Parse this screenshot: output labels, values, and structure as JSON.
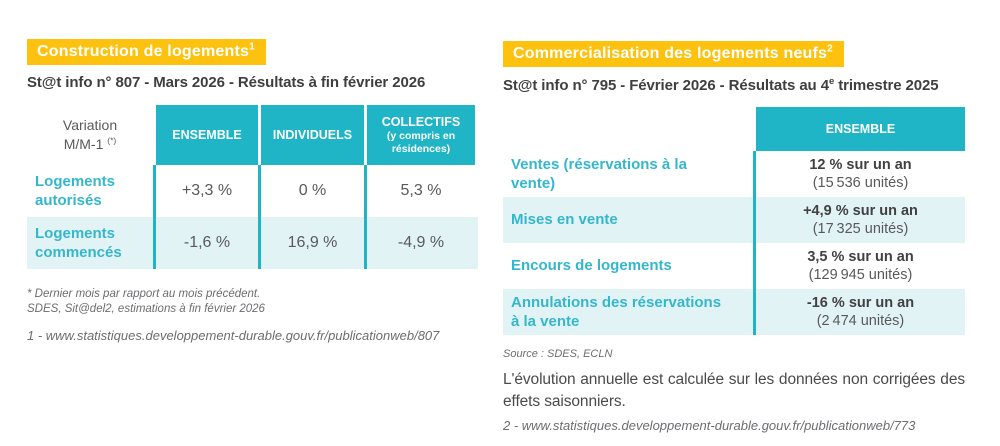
{
  "colors": {
    "accent_yellow": "#FDC20F",
    "accent_teal": "#1FB5C6",
    "row_alt_teal": "#E2F3F6",
    "label_teal": "#35B7CB",
    "text_dark": "#3F3E40",
    "value_gray": "#59595B",
    "note_gray": "#6C6D70"
  },
  "construction": {
    "title": "Construction de logements",
    "title_sup": "1",
    "subtitle": "St@t info n° 807 - Mars 2026 - Résultats à fin février 2026",
    "table": {
      "corner": {
        "line1": "Variation",
        "line2": "M/M-1",
        "sup": "(*)"
      },
      "columns": [
        {
          "label": "ENSEMBLE"
        },
        {
          "label": "INDIVIDUELS"
        },
        {
          "label": "COLLECTIFS",
          "sub": "(y compris en résidences)"
        }
      ],
      "rows": [
        {
          "label": "Logements autorisés",
          "values": [
            "+3,3 %",
            "0 %",
            "5,3 %"
          ]
        },
        {
          "label": "Logements commencés",
          "values": [
            "-1,6 %",
            "16,9 %",
            "-4,9 %"
          ]
        }
      ]
    },
    "footnote_line1": "* Dernier mois par rapport au mois précédent.",
    "footnote_line2": "SDES, Sit@del2, estimations à fin février 2026",
    "link": "1 - www.statistiques.developpement-durable.gouv.fr/publicationweb/807"
  },
  "commercialisation": {
    "title": "Commercialisation des logements neufs",
    "title_sup": "2",
    "subtitle_prefix": "St@t info n° 795 - Février 2026 - Résultats au 4",
    "subtitle_sup": "e",
    "subtitle_suffix": " trimestre 2025",
    "table": {
      "column": "ENSEMBLE",
      "rows": [
        {
          "label": "Ventes (réservations à la vente)",
          "pct": "12 % sur un an",
          "units": "(15 536 unités)"
        },
        {
          "label": "Mises en vente",
          "pct": "+4,9 % sur un an",
          "units": "(17 325 unités)"
        },
        {
          "label": "Encours de logements",
          "pct": "3,5 % sur un an",
          "units": "(129 945 unités)"
        },
        {
          "label": "Annulations des réservations à la vente",
          "pct": "-16 % sur un an",
          "units": "(2 474 unités)"
        }
      ]
    },
    "source": "Source : SDES, ECLN",
    "note": "L'évolution annuelle est calculée sur les données non corrigées des effets saisonniers.",
    "link": "2 - www.statistiques.developpement-durable.gouv.fr/publicationweb/773"
  }
}
